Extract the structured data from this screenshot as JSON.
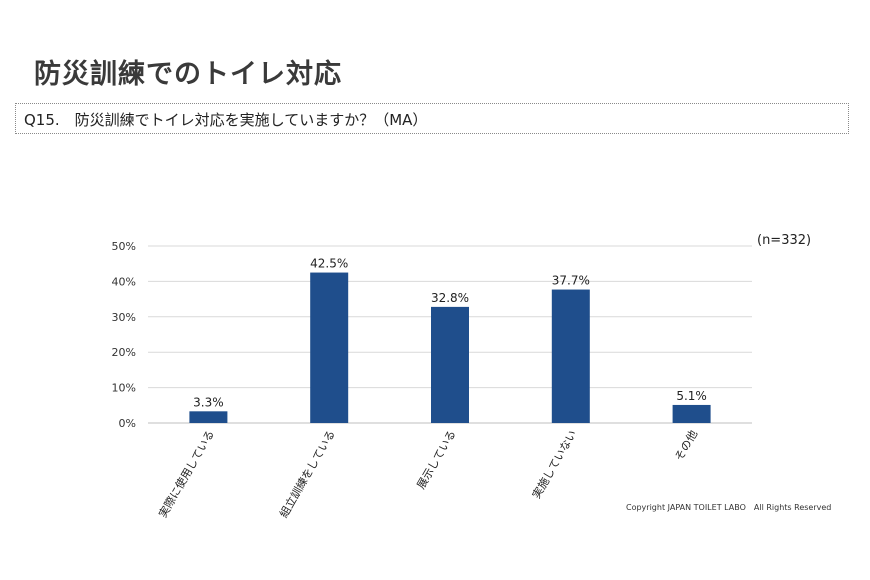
{
  "page": {
    "title": "防災訓練でのトイレ対応",
    "question": "Q15.　防災訓練でトイレ対応を実施していますか？（MA）",
    "sample_size": "(n=332)",
    "copyright": "Copyright JAPAN TOILET LABO　All Rights Reserved"
  },
  "chart_data": {
    "type": "bar",
    "title": "",
    "xlabel": "",
    "ylabel": "",
    "categories": [
      "実際に使用している",
      "組立訓練をしている",
      "展示している",
      "実施していない",
      "その他"
    ],
    "values": [
      3.3,
      42.5,
      32.8,
      37.7,
      5.1
    ],
    "value_labels": [
      "3.3%",
      "42.5%",
      "32.8%",
      "37.7%",
      "5.1%"
    ],
    "y_ticks": [
      "0%",
      "10%",
      "20%",
      "30%",
      "40%",
      "50%"
    ],
    "ylim": [
      0,
      50
    ],
    "grid": true,
    "bar_color": "#1f4e8c"
  }
}
